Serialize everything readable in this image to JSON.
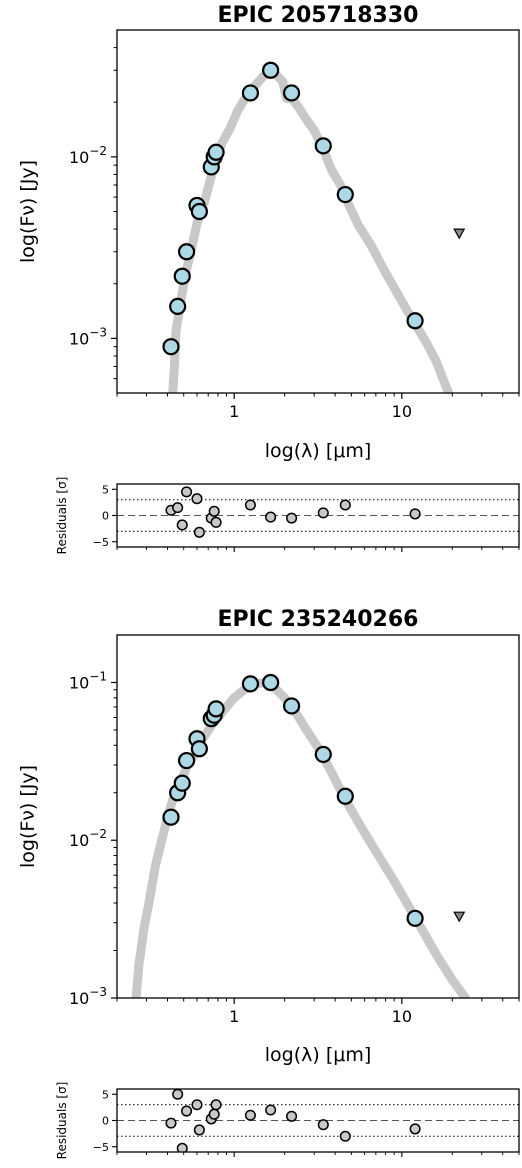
{
  "chart_data": [
    {
      "type": "scatter",
      "title": "EPIC 205718330",
      "xlabel": "log(λ) [μm]",
      "ylabel": "log(Fν) [Jy]",
      "xscale": "log",
      "yscale": "log",
      "xlim": [
        0.2,
        50
      ],
      "ylim": [
        0.0005,
        0.05
      ],
      "xticks": [
        {
          "value": 1,
          "label": "1"
        },
        {
          "value": 10,
          "label": "10"
        }
      ],
      "yticks": [
        {
          "value": 0.01,
          "base": "10",
          "exp": "−2"
        },
        {
          "value": 0.001,
          "base": "10",
          "exp": "−3"
        }
      ],
      "model": [
        [
          0.43,
          0.0005
        ],
        [
          0.44,
          0.0007
        ],
        [
          0.45,
          0.0011
        ],
        [
          0.48,
          0.0016
        ],
        [
          0.52,
          0.0024
        ],
        [
          0.56,
          0.0032
        ],
        [
          0.6,
          0.0043
        ],
        [
          0.66,
          0.0055
        ],
        [
          0.72,
          0.0075
        ],
        [
          0.78,
          0.0095
        ],
        [
          0.85,
          0.012
        ],
        [
          0.95,
          0.0145
        ],
        [
          1.05,
          0.018
        ],
        [
          1.2,
          0.022
        ],
        [
          1.35,
          0.025
        ],
        [
          1.5,
          0.028
        ],
        [
          1.65,
          0.029
        ],
        [
          1.8,
          0.028
        ],
        [
          1.95,
          0.026
        ],
        [
          2.05,
          0.021
        ],
        [
          2.2,
          0.021
        ],
        [
          2.4,
          0.019
        ],
        [
          2.7,
          0.016
        ],
        [
          3.0,
          0.014
        ],
        [
          3.4,
          0.011
        ],
        [
          3.8,
          0.0085
        ],
        [
          4.3,
          0.007
        ],
        [
          4.8,
          0.0055
        ],
        [
          5.5,
          0.0042
        ],
        [
          6.5,
          0.0033
        ],
        [
          8.0,
          0.0023
        ],
        [
          10.0,
          0.0016
        ],
        [
          12.0,
          0.0012
        ],
        [
          14.0,
          0.00095
        ],
        [
          16.0,
          0.00075
        ],
        [
          19.0,
          0.0005
        ]
      ],
      "points": [
        [
          0.42,
          0.0009
        ],
        [
          0.46,
          0.0015
        ],
        [
          0.49,
          0.0022
        ],
        [
          0.52,
          0.003
        ],
        [
          0.6,
          0.0054
        ],
        [
          0.62,
          0.005
        ],
        [
          0.73,
          0.0088
        ],
        [
          0.76,
          0.01
        ],
        [
          0.78,
          0.0106
        ],
        [
          1.25,
          0.0225
        ],
        [
          1.65,
          0.03
        ],
        [
          2.2,
          0.0225
        ],
        [
          3.4,
          0.0115
        ],
        [
          4.6,
          0.0062
        ],
        [
          12.0,
          0.00125
        ]
      ],
      "upper_limits": [
        [
          22.0,
          0.0038
        ]
      ],
      "residuals": {
        "ylabel": "Residuals [σ]",
        "ylim": [
          -6,
          6
        ],
        "yticks": [
          {
            "value": 5,
            "label": "5"
          },
          {
            "value": 0,
            "label": "0"
          },
          {
            "value": -5,
            "label": "−5"
          }
        ],
        "dotted_lines": [
          3,
          -3
        ],
        "points": [
          [
            0.42,
            1.0
          ],
          [
            0.46,
            1.5
          ],
          [
            0.49,
            -1.8
          ],
          [
            0.52,
            4.5
          ],
          [
            0.6,
            3.2
          ],
          [
            0.62,
            -3.2
          ],
          [
            0.73,
            -0.5
          ],
          [
            0.76,
            0.8
          ],
          [
            0.78,
            -1.3
          ],
          [
            1.25,
            2.0
          ],
          [
            2.2,
            -0.5
          ],
          [
            1.65,
            -0.3
          ],
          [
            3.4,
            0.5
          ],
          [
            4.6,
            2.0
          ],
          [
            12.0,
            0.3
          ]
        ]
      }
    },
    {
      "type": "scatter",
      "title": "EPIC 235240266",
      "xlabel": "log(λ) [μm]",
      "ylabel": "log(Fν) [Jy]",
      "xscale": "log",
      "yscale": "log",
      "xlim": [
        0.2,
        50
      ],
      "ylim": [
        0.001,
        0.2
      ],
      "xticks": [
        {
          "value": 1,
          "label": "1"
        },
        {
          "value": 10,
          "label": "10"
        }
      ],
      "yticks": [
        {
          "value": 0.1,
          "base": "10",
          "exp": "−1"
        },
        {
          "value": 0.01,
          "base": "10",
          "exp": "−2"
        },
        {
          "value": 0.001,
          "base": "10",
          "exp": "−3"
        }
      ],
      "model": [
        [
          0.26,
          0.001
        ],
        [
          0.27,
          0.0016
        ],
        [
          0.29,
          0.0028
        ],
        [
          0.31,
          0.004
        ],
        [
          0.34,
          0.007
        ],
        [
          0.37,
          0.01
        ],
        [
          0.4,
          0.014
        ],
        [
          0.43,
          0.018
        ],
        [
          0.47,
          0.022
        ],
        [
          0.52,
          0.029
        ],
        [
          0.58,
          0.035
        ],
        [
          0.64,
          0.043
        ],
        [
          0.72,
          0.052
        ],
        [
          0.8,
          0.06
        ],
        [
          0.9,
          0.07
        ],
        [
          1.0,
          0.08
        ],
        [
          1.15,
          0.09
        ],
        [
          1.3,
          0.097
        ],
        [
          1.5,
          0.1
        ],
        [
          1.7,
          0.095
        ],
        [
          2.0,
          0.08
        ],
        [
          2.3,
          0.066
        ],
        [
          2.7,
          0.05
        ],
        [
          3.2,
          0.038
        ],
        [
          3.8,
          0.027
        ],
        [
          4.5,
          0.019
        ],
        [
          5.5,
          0.013
        ],
        [
          7.0,
          0.0085
        ],
        [
          9.0,
          0.0055
        ],
        [
          11.0,
          0.0038
        ],
        [
          13.0,
          0.0028
        ],
        [
          16.0,
          0.0019
        ],
        [
          20.0,
          0.0013
        ],
        [
          24.0,
          0.001
        ]
      ],
      "points": [
        [
          0.42,
          0.014
        ],
        [
          0.46,
          0.02
        ],
        [
          0.49,
          0.023
        ],
        [
          0.52,
          0.032
        ],
        [
          0.6,
          0.044
        ],
        [
          0.62,
          0.038
        ],
        [
          0.73,
          0.059
        ],
        [
          0.76,
          0.062
        ],
        [
          0.78,
          0.068
        ],
        [
          1.25,
          0.098
        ],
        [
          1.65,
          0.1
        ],
        [
          2.2,
          0.071
        ],
        [
          3.4,
          0.035
        ],
        [
          4.6,
          0.019
        ],
        [
          12.0,
          0.0032
        ]
      ],
      "upper_limits": [
        [
          22.0,
          0.0033
        ]
      ],
      "residuals": {
        "ylabel": "Residuals [σ]",
        "ylim": [
          -6,
          6
        ],
        "yticks": [
          {
            "value": 5,
            "label": "5"
          },
          {
            "value": 0,
            "label": "0"
          },
          {
            "value": -5,
            "label": "−5"
          }
        ],
        "dotted_lines": [
          3,
          -3
        ],
        "points": [
          [
            0.42,
            -0.5
          ],
          [
            0.46,
            5.0
          ],
          [
            0.49,
            -5.3
          ],
          [
            0.52,
            1.8
          ],
          [
            0.6,
            3.0
          ],
          [
            0.62,
            -1.8
          ],
          [
            0.73,
            0.3
          ],
          [
            0.76,
            1.2
          ],
          [
            0.78,
            3.0
          ],
          [
            1.25,
            1.0
          ],
          [
            1.65,
            2.0
          ],
          [
            2.2,
            0.8
          ],
          [
            3.4,
            -0.8
          ],
          [
            4.6,
            -3.0
          ],
          [
            12.0,
            -1.6
          ]
        ]
      }
    }
  ]
}
